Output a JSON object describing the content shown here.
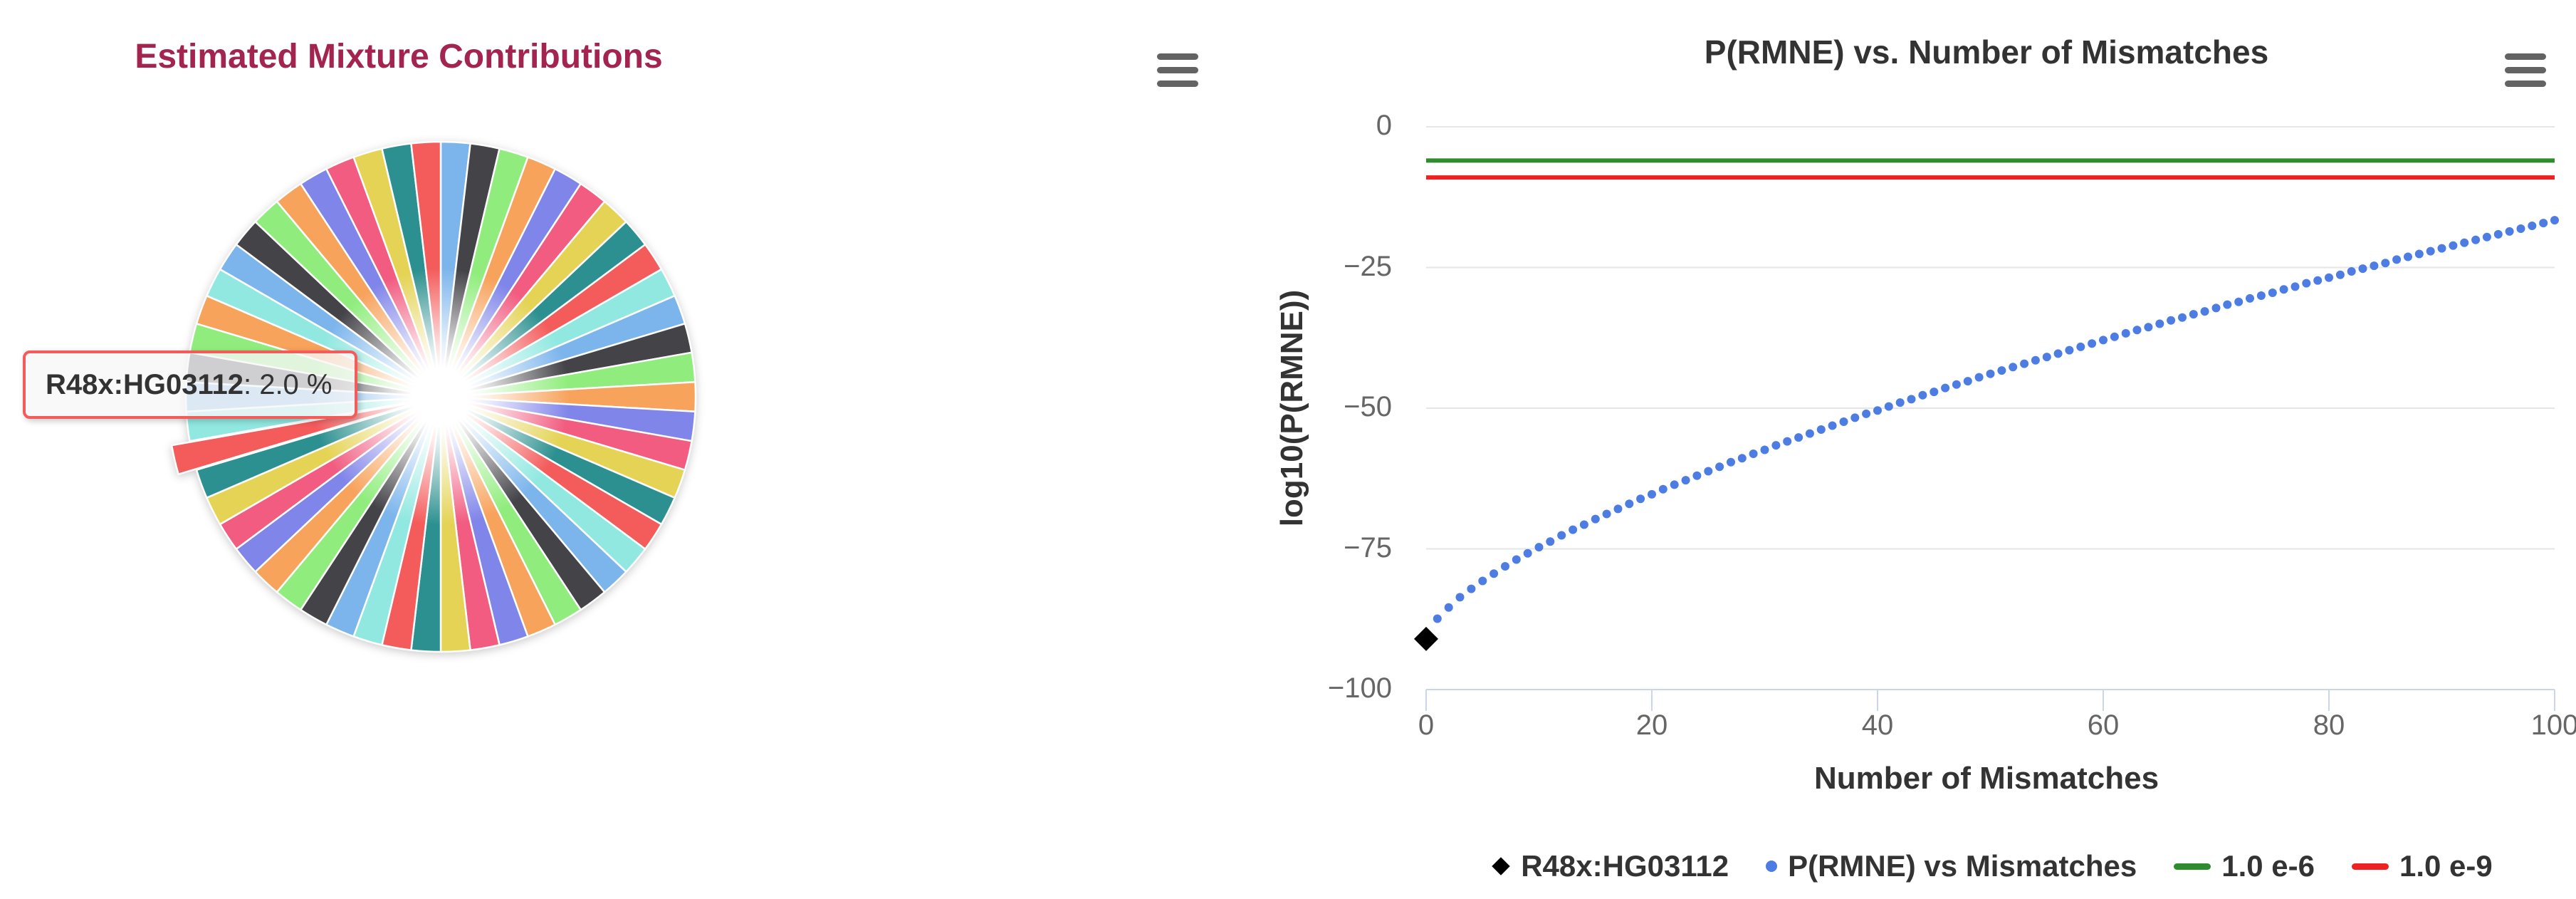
{
  "chart_data": [
    {
      "type": "pie",
      "title": "Estimated Mixture Contributions",
      "title_color": "#a42450",
      "num_slices": 54,
      "direction": "clockwise",
      "start_angle_deg": 0,
      "palette": [
        "#7cb5ec",
        "#434348",
        "#90ed7d",
        "#f7a35c",
        "#8085e9",
        "#f15c80",
        "#e4d354",
        "#2b908f",
        "#f45b5b",
        "#91e8e1"
      ],
      "slice_color_indices": [
        0,
        1,
        2,
        3,
        4,
        5,
        6,
        7,
        8,
        9,
        0,
        1,
        2,
        3,
        4,
        5,
        6,
        7,
        8,
        9,
        0,
        1,
        2,
        3,
        4,
        5,
        6,
        7,
        8,
        9,
        0,
        1,
        2,
        3,
        4,
        5,
        6,
        7,
        8,
        9,
        0,
        1,
        2,
        3,
        9,
        0,
        1,
        2,
        3,
        4,
        5,
        6,
        7,
        8
      ],
      "exploded_slice_index": 38,
      "slice_border_color": "#ffffff",
      "hovered_point": {
        "name": "R48x:HG03112",
        "percent_label": "2.0 %"
      },
      "tooltip": {
        "name": "R48x:HG03112",
        "rest": ": 2.0 %",
        "border_color": "#f45b5b"
      },
      "menu_icon": "hamburger-menu-icon"
    },
    {
      "type": "scatter",
      "title": "P(RMNE) vs. Number of Mismatches",
      "xlabel": "Number of Mismatches",
      "ylabel": "log10(P(RMNE))",
      "xlim": [
        0,
        100
      ],
      "ylim": [
        -100,
        0
      ],
      "x_ticks": [
        0,
        20,
        40,
        60,
        80,
        100
      ],
      "y_ticks": [
        0,
        -25,
        -50,
        -75,
        -100
      ],
      "grid": "horizontal",
      "grid_color": "#e6e6e6",
      "axis_color": "#ccd6eb",
      "tick_label_color": "#666666",
      "text_color": "#333333",
      "legend_position": "bottom",
      "menu_icon": "hamburger-menu-icon",
      "series": [
        {
          "name": "R48x:HG03112",
          "marker": "diamond",
          "color": "#000000",
          "points": [
            [
              0,
              -91
            ]
          ]
        },
        {
          "name": "P(RMNE) vs Mismatches",
          "marker": "circle",
          "color": "#4d7de2",
          "x_start": 1,
          "x_step": 1,
          "y_values": [
            -87.4,
            -85.4,
            -83.6,
            -82.1,
            -80.7,
            -79.4,
            -78.1,
            -76.9,
            -75.8,
            -74.7,
            -73.7,
            -72.6,
            -71.6,
            -70.7,
            -69.7,
            -68.8,
            -67.9,
            -67.0,
            -66.1,
            -65.3,
            -64.4,
            -63.6,
            -62.8,
            -62.0,
            -61.2,
            -60.4,
            -59.6,
            -58.9,
            -58.1,
            -57.4,
            -56.6,
            -55.9,
            -55.2,
            -54.5,
            -53.8,
            -53.1,
            -52.4,
            -51.7,
            -51.0,
            -50.4,
            -49.7,
            -49.0,
            -48.4,
            -47.7,
            -47.1,
            -46.4,
            -45.8,
            -45.2,
            -44.5,
            -43.9,
            -43.3,
            -42.7,
            -42.1,
            -41.5,
            -40.9,
            -40.3,
            -39.7,
            -39.1,
            -38.5,
            -37.9,
            -37.3,
            -36.7,
            -36.1,
            -35.6,
            -35.0,
            -34.4,
            -33.9,
            -33.3,
            -32.8,
            -32.2,
            -31.6,
            -31.1,
            -30.5,
            -30.0,
            -29.5,
            -28.9,
            -28.4,
            -27.8,
            -27.3,
            -26.8,
            -26.3,
            -25.7,
            -25.2,
            -24.7,
            -24.2,
            -23.6,
            -23.1,
            -22.6,
            -22.1,
            -21.6,
            -21.1,
            -20.6,
            -20.1,
            -19.6,
            -19.1,
            -18.6,
            -18.1,
            -17.6,
            -17.1,
            -16.6
          ]
        },
        {
          "name": "1.0 e-6",
          "marker": "line",
          "color": "#2e8b2e",
          "plotline_y": -6
        },
        {
          "name": "1.0 e-9",
          "marker": "line",
          "color": "#ee2222",
          "plotline_y": -9
        }
      ]
    }
  ]
}
